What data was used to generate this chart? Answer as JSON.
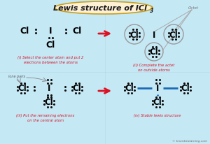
{
  "title_text1": "Lewis structure of ICl",
  "title_sub": "3",
  "bg_color": "#c5e8f5",
  "title_bg": "#fdf0d5",
  "title_border": "#c8a020",
  "panel_labels": [
    "(i) Select the center atom and put 2\nelectrons between the atoms",
    "(ii) Complete the actet\non outside atoms",
    "(iii) Put the remaining electrons\non the central atom",
    "(iv) Stable lewis structure"
  ],
  "red_color": "#dd1122",
  "blue_color": "#1a6ab5",
  "dot_color": "#111111",
  "octet_circle_color": "#999999",
  "lone_pairs_label": "lone pairs",
  "octet_label": "Octet",
  "watermark": "© knordislearning.com"
}
